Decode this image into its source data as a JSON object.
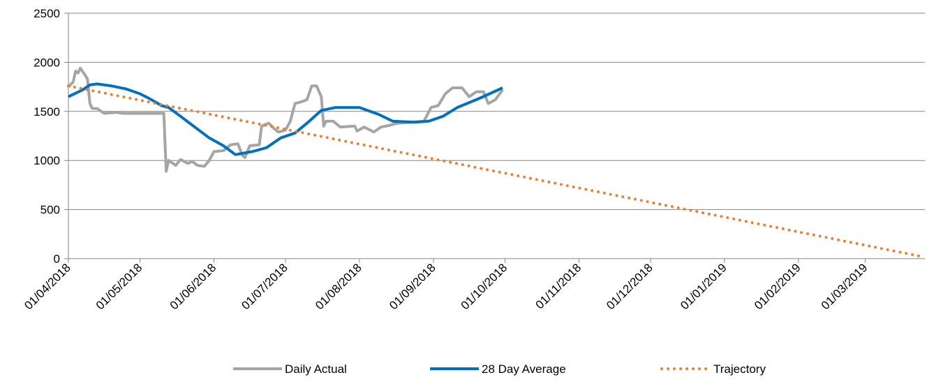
{
  "chart_data": {
    "type": "line",
    "ylim": [
      0,
      2500
    ],
    "yticks": [
      0,
      500,
      1000,
      1500,
      2000,
      2500
    ],
    "grid": true,
    "xlim": [
      "2018-04-01",
      "2019-03-26"
    ],
    "xticks": [
      {
        "value": "2018-04-01",
        "label": "01/04/2018"
      },
      {
        "value": "2018-05-01",
        "label": "01/05/2018"
      },
      {
        "value": "2018-06-01",
        "label": "01/06/2018"
      },
      {
        "value": "2018-07-01",
        "label": "01/07/2018"
      },
      {
        "value": "2018-08-01",
        "label": "01/08/2018"
      },
      {
        "value": "2018-09-01",
        "label": "01/09/2018"
      },
      {
        "value": "2018-10-01",
        "label": "01/10/2018"
      },
      {
        "value": "2018-11-01",
        "label": "01/11/2018"
      },
      {
        "value": "2018-12-01",
        "label": "01/12/2018"
      },
      {
        "value": "2019-01-01",
        "label": "01/01/2019"
      },
      {
        "value": "2019-02-01",
        "label": "01/02/2019"
      },
      {
        "value": "2019-03-01",
        "label": "01/03/2019"
      }
    ],
    "legend": "bottom",
    "series": [
      {
        "name": "Daily Actual",
        "color": "#a5a5a5",
        "style": "solid",
        "x": [
          "2018-04-01",
          "2018-04-03",
          "2018-04-04",
          "2018-04-05",
          "2018-04-06",
          "2018-04-08",
          "2018-04-09",
          "2018-04-10",
          "2018-04-11",
          "2018-04-13",
          "2018-04-16",
          "2018-04-21",
          "2018-04-24",
          "2018-05-01",
          "2018-05-11",
          "2018-05-12",
          "2018-05-13",
          "2018-05-16",
          "2018-05-18",
          "2018-05-21",
          "2018-05-23",
          "2018-05-25",
          "2018-05-28",
          "2018-05-30",
          "2018-06-01",
          "2018-06-05",
          "2018-06-08",
          "2018-06-11",
          "2018-06-13",
          "2018-06-14",
          "2018-06-16",
          "2018-06-20",
          "2018-06-21",
          "2018-06-24",
          "2018-06-26",
          "2018-06-28",
          "2018-07-01",
          "2018-07-03",
          "2018-07-05",
          "2018-07-08",
          "2018-07-10",
          "2018-07-12",
          "2018-07-14",
          "2018-07-16",
          "2018-07-17",
          "2018-07-18",
          "2018-07-21",
          "2018-07-24",
          "2018-07-30",
          "2018-07-31",
          "2018-08-03",
          "2018-08-07",
          "2018-08-10",
          "2018-08-14",
          "2018-08-17",
          "2018-08-23",
          "2018-08-28",
          "2018-08-31",
          "2018-09-03",
          "2018-09-06",
          "2018-09-09",
          "2018-09-13",
          "2018-09-16",
          "2018-09-19",
          "2018-09-22",
          "2018-09-24",
          "2018-09-27",
          "2018-09-30"
        ],
        "values": [
          1750,
          1800,
          1910,
          1890,
          1940,
          1870,
          1830,
          1580,
          1530,
          1530,
          1480,
          1490,
          1480,
          1480,
          1480,
          890,
          1000,
          950,
          1010,
          970,
          990,
          950,
          940,
          1000,
          1090,
          1100,
          1160,
          1170,
          1050,
          1030,
          1150,
          1160,
          1350,
          1380,
          1330,
          1290,
          1310,
          1400,
          1580,
          1600,
          1620,
          1760,
          1760,
          1650,
          1350,
          1400,
          1400,
          1340,
          1350,
          1300,
          1340,
          1290,
          1340,
          1360,
          1380,
          1390,
          1400,
          1540,
          1560,
          1680,
          1740,
          1740,
          1650,
          1700,
          1700,
          1580,
          1620,
          1720
        ]
      },
      {
        "name": "28 Day Average",
        "color": "#0070c0",
        "style": "solid",
        "x": [
          "2018-04-01",
          "2018-04-07",
          "2018-04-10",
          "2018-04-13",
          "2018-04-19",
          "2018-04-25",
          "2018-05-01",
          "2018-05-05",
          "2018-05-10",
          "2018-05-13",
          "2018-05-18",
          "2018-05-24",
          "2018-05-30",
          "2018-06-05",
          "2018-06-10",
          "2018-06-17",
          "2018-06-23",
          "2018-06-29",
          "2018-07-05",
          "2018-07-10",
          "2018-07-16",
          "2018-07-22",
          "2018-07-28",
          "2018-08-01",
          "2018-08-09",
          "2018-08-15",
          "2018-08-24",
          "2018-08-30",
          "2018-09-05",
          "2018-09-11",
          "2018-09-20",
          "2018-09-30"
        ],
        "values": [
          1650,
          1720,
          1770,
          1780,
          1760,
          1730,
          1680,
          1630,
          1560,
          1540,
          1450,
          1340,
          1230,
          1150,
          1060,
          1090,
          1130,
          1230,
          1280,
          1380,
          1510,
          1540,
          1540,
          1540,
          1470,
          1400,
          1390,
          1400,
          1450,
          1540,
          1630,
          1740
        ]
      },
      {
        "name": "Trajectory",
        "color": "#ed7d31",
        "style": "dotted",
        "x": [
          "2018-04-01",
          "2019-03-25"
        ],
        "values": [
          1760,
          20
        ]
      }
    ]
  }
}
